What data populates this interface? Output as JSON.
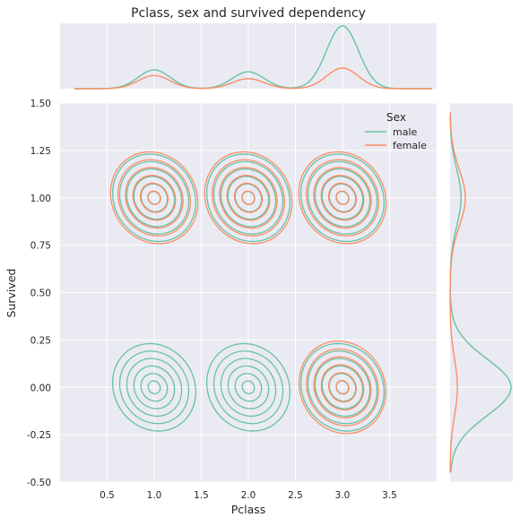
{
  "chart_data": {
    "type": "kde-joint",
    "title": "Pclass, sex and survived dependency",
    "xlabel": "Pclass",
    "ylabel": "Survived",
    "xlim": [
      0.0,
      4.0
    ],
    "ylim": [
      -0.5,
      1.5
    ],
    "x_ticks": [
      "0.5",
      "1.0",
      "1.5",
      "2.0",
      "2.5",
      "3.0",
      "3.5"
    ],
    "y_ticks": [
      "1.50",
      "1.25",
      "1.00",
      "0.75",
      "0.50",
      "0.25",
      "0.00",
      "-0.25",
      "-0.50"
    ],
    "legend": {
      "title": "Sex",
      "placement": "top-right"
    },
    "grid": true,
    "series": [
      {
        "name": "male",
        "color": "#66c2a5",
        "clusters": [
          {
            "x": 1,
            "y": 1
          },
          {
            "x": 2,
            "y": 1
          },
          {
            "x": 3,
            "y": 1
          },
          {
            "x": 1,
            "y": 0
          },
          {
            "x": 2,
            "y": 0
          },
          {
            "x": 3,
            "y": 0
          }
        ],
        "marginal_x_peaks": [
          {
            "x": 1,
            "height": 0.3
          },
          {
            "x": 2,
            "height": 0.27
          },
          {
            "x": 3,
            "height": 1.0
          }
        ],
        "marginal_y_peaks": [
          {
            "y": 0,
            "height": 1.0
          },
          {
            "y": 1,
            "height": 0.18
          }
        ]
      },
      {
        "name": "female",
        "color": "#fc8d62",
        "clusters": [
          {
            "x": 1,
            "y": 1
          },
          {
            "x": 2,
            "y": 1
          },
          {
            "x": 3,
            "y": 1
          },
          {
            "x": 3,
            "y": 0
          }
        ],
        "marginal_x_peaks": [
          {
            "x": 1,
            "height": 0.21
          },
          {
            "x": 2,
            "height": 0.16
          },
          {
            "x": 3,
            "height": 0.33
          }
        ],
        "marginal_y_peaks": [
          {
            "y": 0,
            "height": 0.12
          },
          {
            "y": 1,
            "height": 0.25
          }
        ]
      }
    ]
  }
}
